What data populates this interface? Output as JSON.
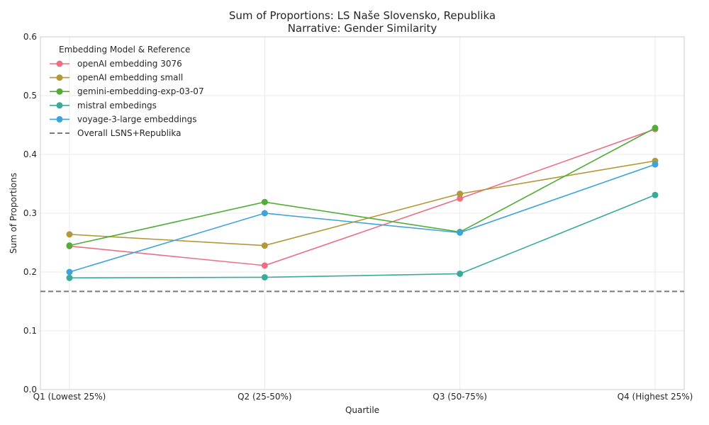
{
  "chart_data": {
    "type": "line",
    "title": "Sum of Proportions: LS Naše Slovensko, Republika",
    "subtitle": "Narrative: Gender Similarity",
    "xlabel": "Quartile",
    "ylabel": "Sum of Proportions",
    "categories": [
      "Q1 (Lowest 25%)",
      "Q2 (25-50%)",
      "Q3 (50-75%)",
      "Q4 (Highest 25%)"
    ],
    "ylim": [
      0,
      0.6
    ],
    "yticks": [
      "0.0",
      "0.1",
      "0.2",
      "0.3",
      "0.4",
      "0.5",
      "0.6"
    ],
    "grid": true,
    "legend": {
      "title": "Embedding Model & Reference",
      "placement": "top-left"
    },
    "series": [
      {
        "name": "openAI embedding 3076",
        "color": "#ec6f86",
        "values": [
          0.244,
          0.211,
          0.325,
          0.443
        ]
      },
      {
        "name": "openAI embedding small",
        "color": "#b49837",
        "values": [
          0.264,
          0.245,
          0.333,
          0.389
        ]
      },
      {
        "name": "gemini-embedding-exp-03-07",
        "color": "#51ad37",
        "values": [
          0.245,
          0.319,
          0.268,
          0.445
        ]
      },
      {
        "name": "mistral embedings",
        "color": "#3aaa9a",
        "values": [
          0.19,
          0.191,
          0.197,
          0.331
        ]
      },
      {
        "name": "voyage-3-large embeddings",
        "color": "#3ea3db",
        "values": [
          0.2,
          0.3,
          0.267,
          0.383
        ]
      }
    ],
    "reference_line": {
      "name": "Overall LSNS+Republika",
      "value": 0.167,
      "color": "#7a7a7a",
      "style": "dashed"
    }
  }
}
